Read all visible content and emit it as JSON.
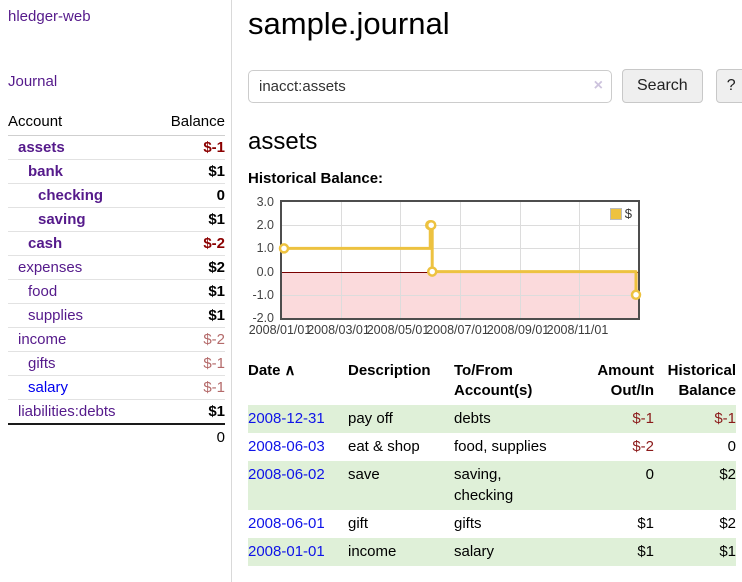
{
  "colors": {
    "link_purple": "#551a8b",
    "link_blue": "#0000ee",
    "negative_strong": "#8b0000",
    "negative_muted": "#b46a6a",
    "row_stripe_green": "#dff0d8",
    "chart_series_yellow": "#edc240"
  },
  "sidebar": {
    "brand": "hledger-web",
    "journal_link": "Journal",
    "accounts_table": {
      "account_header": "Account",
      "balance_header": "Balance",
      "rows": [
        {
          "account": "assets",
          "depth": 1,
          "bold": true,
          "balance": "$-1",
          "negative": true,
          "link": "purple"
        },
        {
          "account": "bank",
          "depth": 2,
          "bold": true,
          "balance": "$1",
          "negative": false,
          "link": "purple"
        },
        {
          "account": "checking",
          "depth": 3,
          "bold": true,
          "balance": "0",
          "negative": false,
          "link": "purple"
        },
        {
          "account": "saving",
          "depth": 3,
          "bold": true,
          "balance": "$1",
          "negative": false,
          "link": "purple"
        },
        {
          "account": "cash",
          "depth": 2,
          "bold": true,
          "balance": "$-2",
          "negative": true,
          "link": "purple"
        },
        {
          "account": "expenses",
          "depth": 1,
          "bold": false,
          "balance": "$2",
          "negative": false,
          "link": "purple"
        },
        {
          "account": "food",
          "depth": 2,
          "bold": false,
          "balance": "$1",
          "negative": false,
          "link": "purple"
        },
        {
          "account": "supplies",
          "depth": 2,
          "bold": false,
          "balance": "$1",
          "negative": false,
          "link": "purple"
        },
        {
          "account": "income",
          "depth": 1,
          "bold": false,
          "balance": "$-2",
          "negative": true,
          "link": "purple"
        },
        {
          "account": "gifts",
          "depth": 2,
          "bold": false,
          "balance": "$-1",
          "negative": true,
          "link": "purple"
        },
        {
          "account": "salary",
          "depth": 2,
          "bold": false,
          "balance": "$-1",
          "negative": true,
          "link": "blue"
        },
        {
          "account": "liabilities:debts",
          "depth": 1,
          "bold": false,
          "balance": "$1",
          "negative": false,
          "link": "purple"
        }
      ],
      "total": "0"
    }
  },
  "main": {
    "title": "sample.journal",
    "search": {
      "value": "inacct:assets",
      "clear_icon": "×",
      "search_button": "Search",
      "help_button": "?"
    },
    "account_heading": "assets",
    "chart_label": "Historical Balance:"
  },
  "chart_data": {
    "type": "line",
    "style": "step",
    "title": "Historical Balance",
    "series": [
      {
        "name": "$",
        "color": "#edc240",
        "points": [
          [
            "2008-01-01",
            1
          ],
          [
            "2008-06-01",
            2
          ],
          [
            "2008-06-02",
            2
          ],
          [
            "2008-06-03",
            0
          ],
          [
            "2008-12-31",
            -1
          ]
        ]
      }
    ],
    "x_min": "2008-01-01",
    "x_max": "2008-12-31",
    "x_ticks": [
      "2008/01/01",
      "2008/03/01",
      "2008/05/01",
      "2008/07/01",
      "2008/09/01",
      "2008/11/01"
    ],
    "y_ticks": [
      3.0,
      2.0,
      1.0,
      0.0,
      -1.0,
      -2.0
    ],
    "y_tick_labels": [
      "3.0",
      "2.0",
      "1.0",
      "0.0",
      "-1.0",
      "-2.0"
    ],
    "ylim": [
      -2,
      3
    ],
    "grid": true,
    "legend_position": "top-right",
    "zero_line_color": "#7a0000",
    "negative_region_color": "#fbdadc"
  },
  "register": {
    "headers": {
      "date": "Date",
      "date_sort_icon": "∧",
      "description": "Description",
      "accounts": "To/From Account(s)",
      "amount": "Amount Out/In",
      "balance": "Historical Balance"
    },
    "rows": [
      {
        "date": "2008-12-31",
        "description": "pay off",
        "accounts": "debts",
        "amount": "$-1",
        "amount_negative": true,
        "balance": "$-1",
        "balance_negative": true
      },
      {
        "date": "2008-06-03",
        "description": "eat & shop",
        "accounts": "food, supplies",
        "amount": "$-2",
        "amount_negative": true,
        "balance": "0",
        "balance_negative": false
      },
      {
        "date": "2008-06-02",
        "description": "save",
        "accounts": "saving, checking",
        "amount": "0",
        "amount_negative": false,
        "balance": "$2",
        "balance_negative": false
      },
      {
        "date": "2008-06-01",
        "description": "gift",
        "accounts": "gifts",
        "amount": "$1",
        "amount_negative": false,
        "balance": "$2",
        "balance_negative": false
      },
      {
        "date": "2008-01-01",
        "description": "income",
        "accounts": "salary",
        "amount": "$1",
        "amount_negative": false,
        "balance": "$1",
        "balance_negative": false
      }
    ]
  }
}
